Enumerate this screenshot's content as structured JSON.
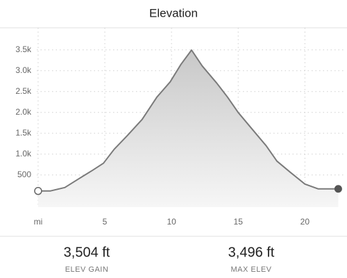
{
  "chart_data": {
    "type": "area",
    "title": "Elevation",
    "x": [
      0,
      0.9,
      2.0,
      3.0,
      4.1,
      4.9,
      5.7,
      6.7,
      7.8,
      8.9,
      9.9,
      10.7,
      11.5,
      12.3,
      13.4,
      14.2,
      15.0,
      16.0,
      17.1,
      17.9,
      18.9,
      20.0,
      21.0,
      22.5
    ],
    "values": [
      117,
      117,
      200,
      400,
      617,
      783,
      1117,
      1450,
      1833,
      2367,
      2733,
      3150,
      3496,
      3117,
      2700,
      2367,
      2000,
      1617,
      1200,
      833,
      567,
      283,
      167,
      167
    ],
    "color": "#7a7a7a",
    "xlim": [
      -0.1,
      23
    ],
    "xticks": [
      {
        "value": 0,
        "label": "mi"
      },
      5,
      10,
      15,
      20
    ],
    "ylim": [
      -270,
      4030
    ],
    "yticks": [
      500,
      {
        "value": 1000,
        "label": "1.0k"
      },
      {
        "value": 1500,
        "label": "1.5k"
      },
      {
        "value": 2000,
        "label": "2.0k"
      },
      {
        "value": 2500,
        "label": "2.5k"
      },
      {
        "value": 3000,
        "label": "3.0k"
      },
      {
        "value": 3500,
        "label": "3.5k"
      }
    ],
    "grid": true
  },
  "stats": [
    {
      "value": "3,504 ft",
      "label": "ELEV GAIN"
    },
    {
      "value": "3,496 ft",
      "label": "MAX ELEV"
    }
  ]
}
